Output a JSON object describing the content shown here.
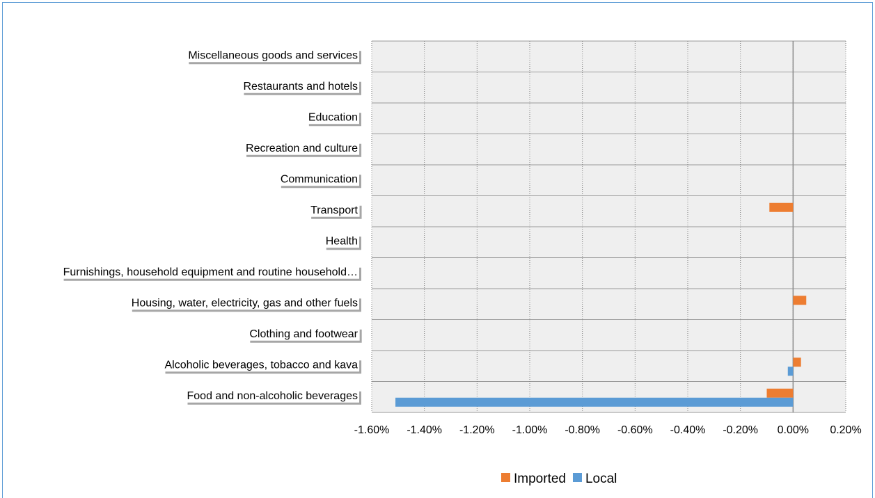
{
  "chart_data": {
    "type": "bar",
    "orientation": "horizontal",
    "categories": [
      "Food and non-alcoholic beverages",
      "Alcoholic beverages, tobacco and kava",
      "Clothing and footwear",
      "Housing, water, electricity, gas and other fuels",
      "Furnishings, household equipment and routine household…",
      "Health",
      "Transport",
      "Communication",
      "Recreation and culture",
      "Education",
      "Restaurants and hotels",
      "Miscellaneous goods and services"
    ],
    "series": [
      {
        "name": "Imported",
        "color": "#ed7d31",
        "values": [
          -0.1,
          0.03,
          0.0,
          0.05,
          0.0,
          0.0,
          -0.09,
          0.0,
          0.0,
          0.0,
          0.0,
          0.0
        ]
      },
      {
        "name": "Local",
        "color": "#5b9bd5",
        "values": [
          -1.51,
          -0.02,
          0.0,
          0.0,
          0.0,
          0.0,
          0.0,
          0.0,
          0.0,
          0.0,
          0.0,
          0.0
        ]
      }
    ],
    "xlim": [
      -1.6,
      0.2
    ],
    "xticks": [
      "-1.60%",
      "-1.40%",
      "-1.20%",
      "-1.00%",
      "-0.80%",
      "-0.60%",
      "-0.40%",
      "-0.20%",
      "0.00%",
      "0.20%"
    ],
    "unit": "%",
    "grid": true,
    "legend_position": "bottom"
  }
}
